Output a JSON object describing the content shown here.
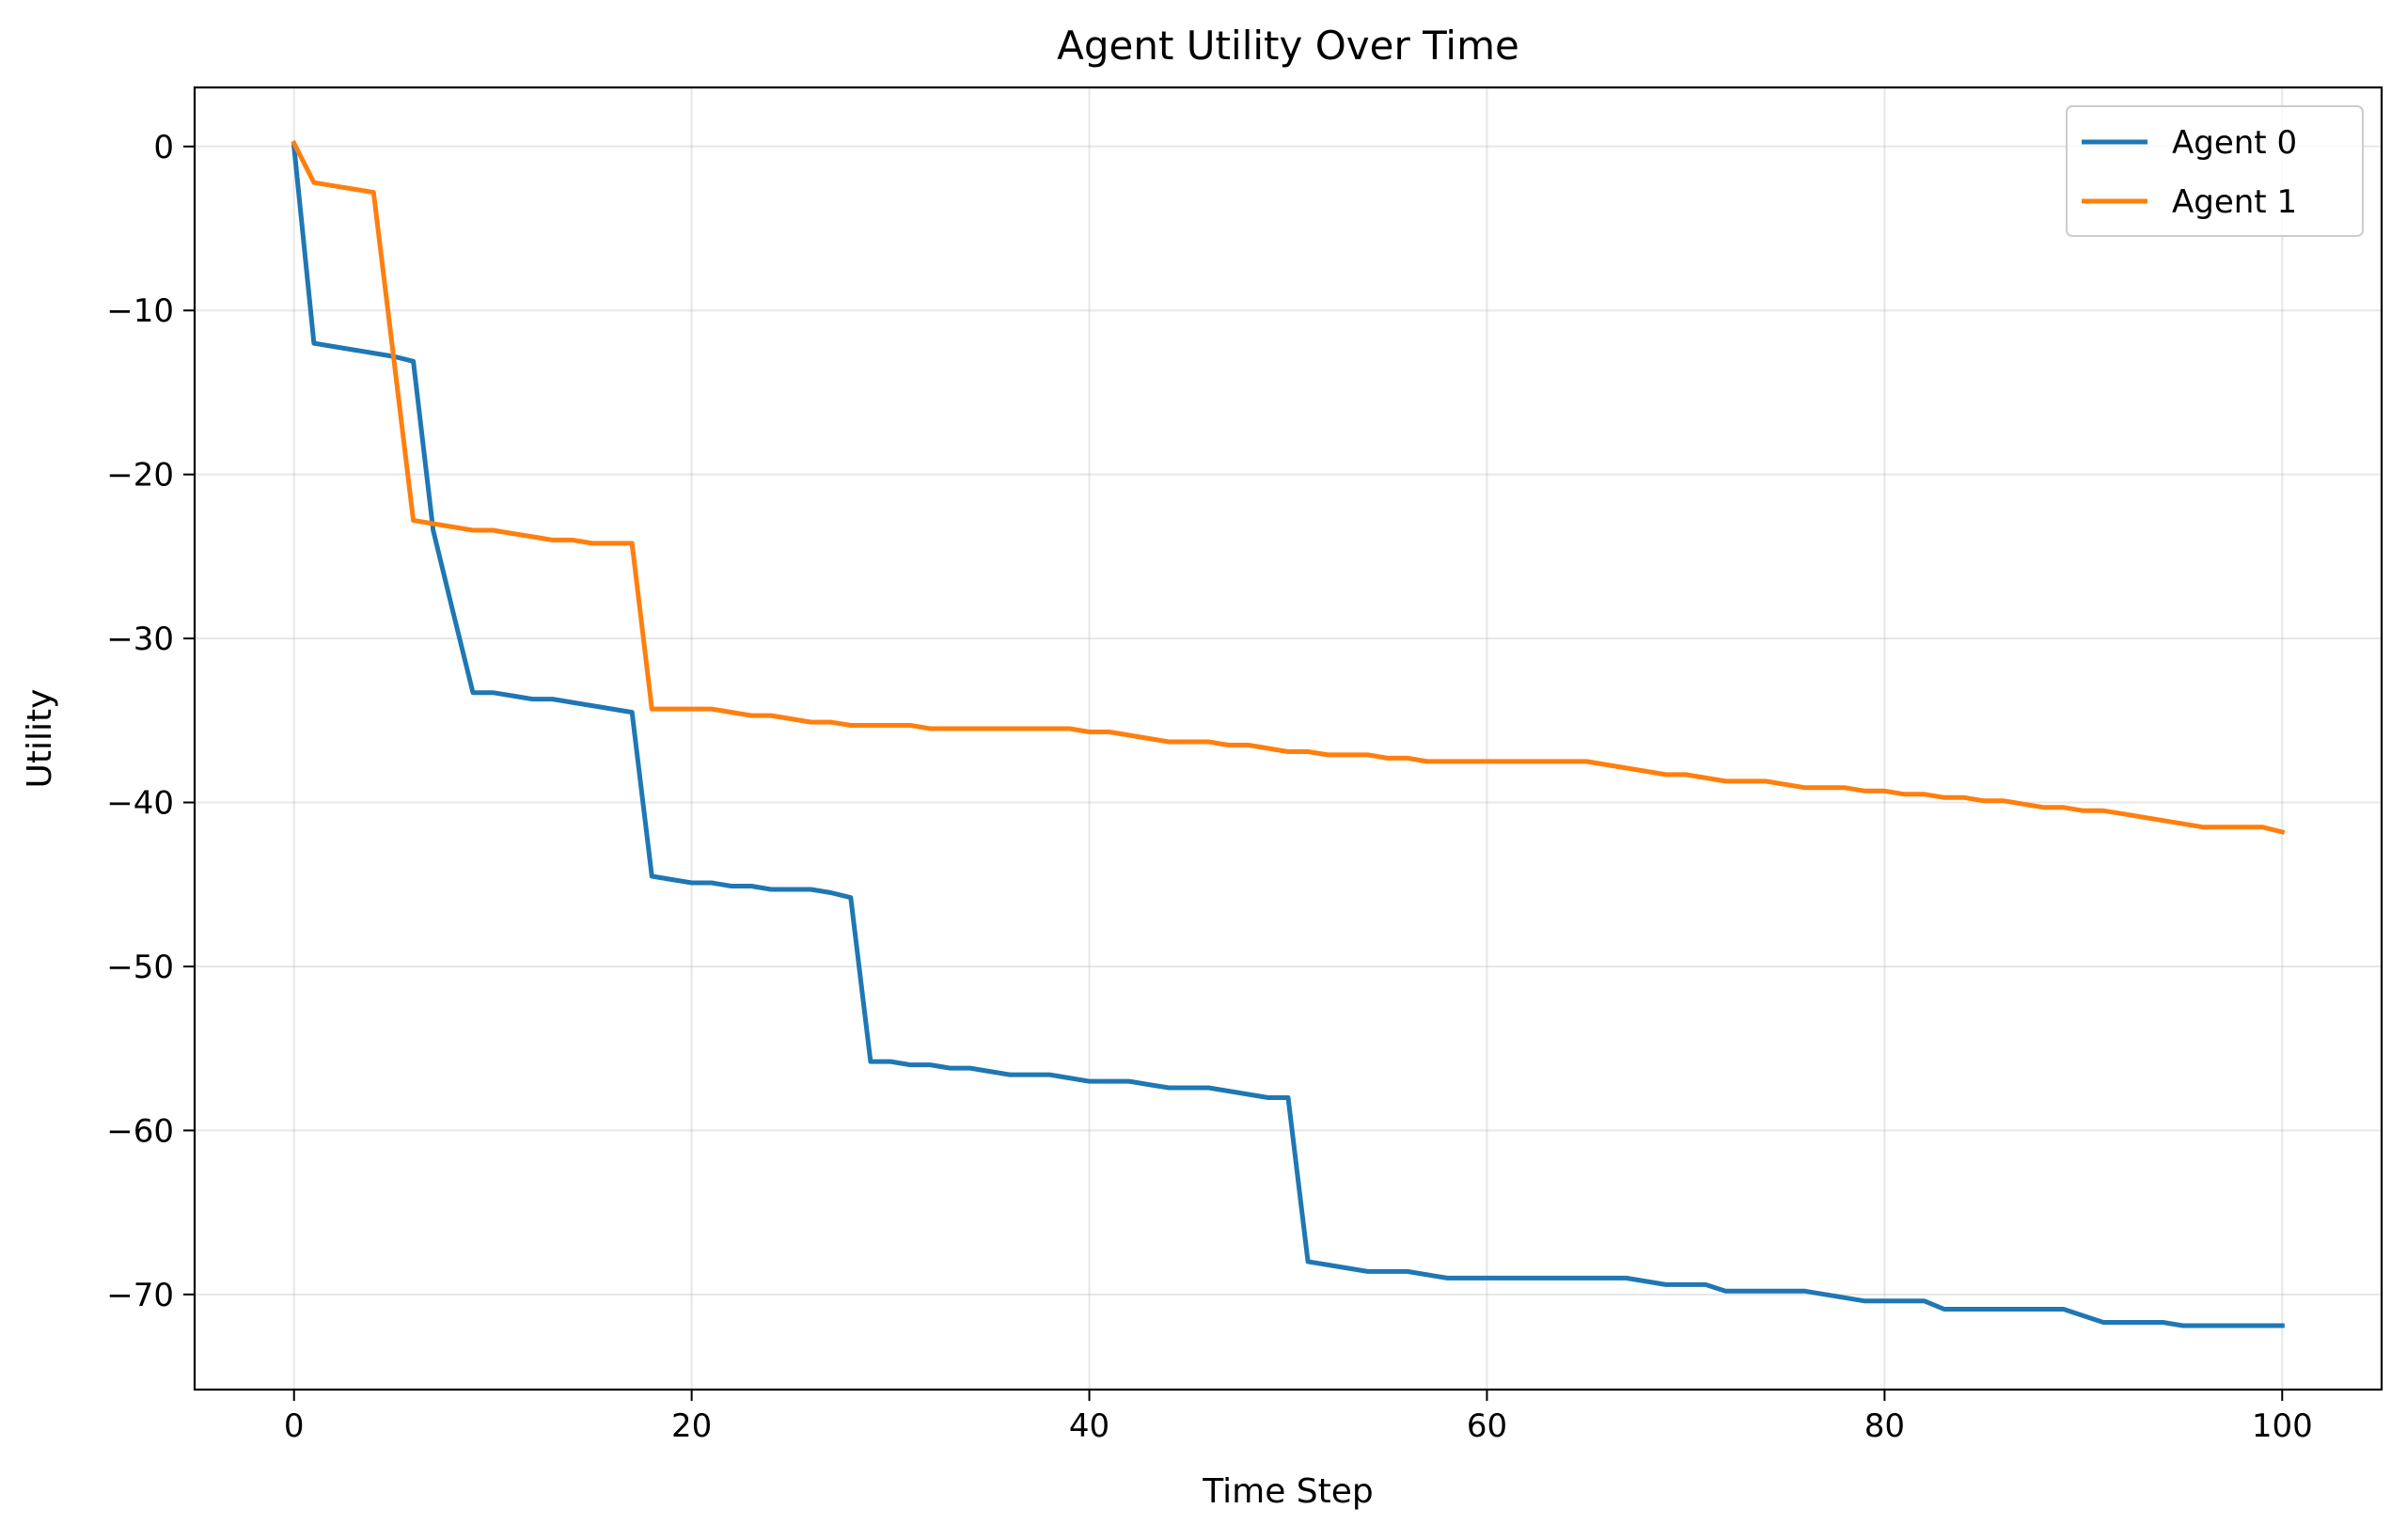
{
  "chart_data": {
    "type": "line",
    "title": "Agent Utility Over Time",
    "xlabel": "Time Step",
    "ylabel": "Utility",
    "xlim": [
      -5,
      105
    ],
    "ylim": [
      -75.8,
      3.6
    ],
    "xticks": [
      0,
      20,
      40,
      60,
      80,
      100
    ],
    "yticks": [
      0,
      -10,
      -20,
      -30,
      -40,
      -50,
      -60,
      -70
    ],
    "xtick_labels": [
      "0",
      "20",
      "40",
      "60",
      "80",
      "100"
    ],
    "ytick_labels": [
      "0",
      "−10",
      "−20",
      "−30",
      "−40",
      "−50",
      "−60",
      "−70"
    ],
    "grid": true,
    "legend_position": "top-right",
    "series": [
      {
        "name": "Agent 0",
        "color": "#1f77b4",
        "points": [
          [
            0,
            0
          ],
          [
            1,
            -12
          ],
          [
            2,
            -12.2
          ],
          [
            3,
            -12.4
          ],
          [
            4,
            -12.6
          ],
          [
            5,
            -12.8
          ],
          [
            6,
            -13.1
          ],
          [
            7,
            -23.4
          ],
          [
            8,
            -28.4
          ],
          [
            9,
            -33.3
          ],
          [
            10,
            -33.3
          ],
          [
            11,
            -33.5
          ],
          [
            12,
            -33.7
          ],
          [
            13,
            -33.7
          ],
          [
            14,
            -33.9
          ],
          [
            15,
            -34.1
          ],
          [
            16,
            -34.3
          ],
          [
            17,
            -34.5
          ],
          [
            18,
            -44.5
          ],
          [
            19,
            -44.7
          ],
          [
            20,
            -44.9
          ],
          [
            21,
            -44.9
          ],
          [
            22,
            -45.1
          ],
          [
            23,
            -45.1
          ],
          [
            24,
            -45.3
          ],
          [
            25,
            -45.3
          ],
          [
            26,
            -45.3
          ],
          [
            27,
            -45.5
          ],
          [
            28,
            -45.8
          ],
          [
            29,
            -55.8
          ],
          [
            30,
            -55.8
          ],
          [
            31,
            -56
          ],
          [
            32,
            -56
          ],
          [
            33,
            -56.2
          ],
          [
            34,
            -56.2
          ],
          [
            35,
            -56.4
          ],
          [
            36,
            -56.6
          ],
          [
            37,
            -56.6
          ],
          [
            38,
            -56.6
          ],
          [
            39,
            -56.8
          ],
          [
            40,
            -57
          ],
          [
            41,
            -57
          ],
          [
            42,
            -57
          ],
          [
            43,
            -57.2
          ],
          [
            44,
            -57.4
          ],
          [
            45,
            -57.4
          ],
          [
            46,
            -57.4
          ],
          [
            47,
            -57.6
          ],
          [
            48,
            -57.8
          ],
          [
            49,
            -58
          ],
          [
            50,
            -58
          ],
          [
            51,
            -68
          ],
          [
            52,
            -68.2
          ],
          [
            53,
            -68.4
          ],
          [
            54,
            -68.6
          ],
          [
            55,
            -68.6
          ],
          [
            56,
            -68.6
          ],
          [
            57,
            -68.8
          ],
          [
            58,
            -69
          ],
          [
            59,
            -69
          ],
          [
            60,
            -69
          ],
          [
            61,
            -69
          ],
          [
            62,
            -69
          ],
          [
            63,
            -69
          ],
          [
            64,
            -69
          ],
          [
            65,
            -69
          ],
          [
            66,
            -69
          ],
          [
            67,
            -69
          ],
          [
            68,
            -69.2
          ],
          [
            69,
            -69.4
          ],
          [
            70,
            -69.4
          ],
          [
            71,
            -69.4
          ],
          [
            72,
            -69.8
          ],
          [
            73,
            -69.8
          ],
          [
            74,
            -69.8
          ],
          [
            75,
            -69.8
          ],
          [
            76,
            -69.8
          ],
          [
            77,
            -70
          ],
          [
            78,
            -70.2
          ],
          [
            79,
            -70.4
          ],
          [
            80,
            -70.4
          ],
          [
            81,
            -70.4
          ],
          [
            82,
            -70.4
          ],
          [
            83,
            -70.9
          ],
          [
            84,
            -70.9
          ],
          [
            85,
            -70.9
          ],
          [
            86,
            -70.9
          ],
          [
            87,
            -70.9
          ],
          [
            88,
            -70.9
          ],
          [
            89,
            -70.9
          ],
          [
            90,
            -71.3
          ],
          [
            91,
            -71.7
          ],
          [
            92,
            -71.7
          ],
          [
            93,
            -71.7
          ],
          [
            94,
            -71.7
          ],
          [
            95,
            -71.9
          ],
          [
            96,
            -71.9
          ],
          [
            97,
            -71.9
          ],
          [
            98,
            -71.9
          ],
          [
            99,
            -71.9
          ],
          [
            100,
            -71.9
          ]
        ]
      },
      {
        "name": "Agent 1",
        "color": "#ff7f0e",
        "points": [
          [
            0,
            0.2
          ],
          [
            1,
            -2.2
          ],
          [
            2,
            -2.4
          ],
          [
            3,
            -2.6
          ],
          [
            4,
            -2.8
          ],
          [
            5,
            -12.8
          ],
          [
            6,
            -22.8
          ],
          [
            7,
            -23
          ],
          [
            8,
            -23.2
          ],
          [
            9,
            -23.4
          ],
          [
            10,
            -23.4
          ],
          [
            11,
            -23.6
          ],
          [
            12,
            -23.8
          ],
          [
            13,
            -24
          ],
          [
            14,
            -24
          ],
          [
            15,
            -24.2
          ],
          [
            16,
            -24.2
          ],
          [
            17,
            -24.2
          ],
          [
            18,
            -34.3
          ],
          [
            19,
            -34.3
          ],
          [
            20,
            -34.3
          ],
          [
            21,
            -34.3
          ],
          [
            22,
            -34.5
          ],
          [
            23,
            -34.7
          ],
          [
            24,
            -34.7
          ],
          [
            25,
            -34.9
          ],
          [
            26,
            -35.1
          ],
          [
            27,
            -35.1
          ],
          [
            28,
            -35.3
          ],
          [
            29,
            -35.3
          ],
          [
            30,
            -35.3
          ],
          [
            31,
            -35.3
          ],
          [
            32,
            -35.5
          ],
          [
            33,
            -35.5
          ],
          [
            34,
            -35.5
          ],
          [
            35,
            -35.5
          ],
          [
            36,
            -35.5
          ],
          [
            37,
            -35.5
          ],
          [
            38,
            -35.5
          ],
          [
            39,
            -35.5
          ],
          [
            40,
            -35.7
          ],
          [
            41,
            -35.7
          ],
          [
            42,
            -35.9
          ],
          [
            43,
            -36.1
          ],
          [
            44,
            -36.3
          ],
          [
            45,
            -36.3
          ],
          [
            46,
            -36.3
          ],
          [
            47,
            -36.5
          ],
          [
            48,
            -36.5
          ],
          [
            49,
            -36.7
          ],
          [
            50,
            -36.9
          ],
          [
            51,
            -36.9
          ],
          [
            52,
            -37.1
          ],
          [
            53,
            -37.1
          ],
          [
            54,
            -37.1
          ],
          [
            55,
            -37.3
          ],
          [
            56,
            -37.3
          ],
          [
            57,
            -37.5
          ],
          [
            58,
            -37.5
          ],
          [
            59,
            -37.5
          ],
          [
            60,
            -37.5
          ],
          [
            61,
            -37.5
          ],
          [
            62,
            -37.5
          ],
          [
            63,
            -37.5
          ],
          [
            64,
            -37.5
          ],
          [
            65,
            -37.5
          ],
          [
            66,
            -37.7
          ],
          [
            67,
            -37.9
          ],
          [
            68,
            -38.1
          ],
          [
            69,
            -38.3
          ],
          [
            70,
            -38.3
          ],
          [
            71,
            -38.5
          ],
          [
            72,
            -38.7
          ],
          [
            73,
            -38.7
          ],
          [
            74,
            -38.7
          ],
          [
            75,
            -38.9
          ],
          [
            76,
            -39.1
          ],
          [
            77,
            -39.1
          ],
          [
            78,
            -39.1
          ],
          [
            79,
            -39.3
          ],
          [
            80,
            -39.3
          ],
          [
            81,
            -39.5
          ],
          [
            82,
            -39.5
          ],
          [
            83,
            -39.7
          ],
          [
            84,
            -39.7
          ],
          [
            85,
            -39.9
          ],
          [
            86,
            -39.9
          ],
          [
            87,
            -40.1
          ],
          [
            88,
            -40.3
          ],
          [
            89,
            -40.3
          ],
          [
            90,
            -40.5
          ],
          [
            91,
            -40.5
          ],
          [
            92,
            -40.7
          ],
          [
            93,
            -40.9
          ],
          [
            94,
            -41.1
          ],
          [
            95,
            -41.3
          ],
          [
            96,
            -41.5
          ],
          [
            97,
            -41.5
          ],
          [
            98,
            -41.5
          ],
          [
            99,
            -41.5
          ],
          [
            100,
            -41.8
          ]
        ]
      }
    ]
  }
}
